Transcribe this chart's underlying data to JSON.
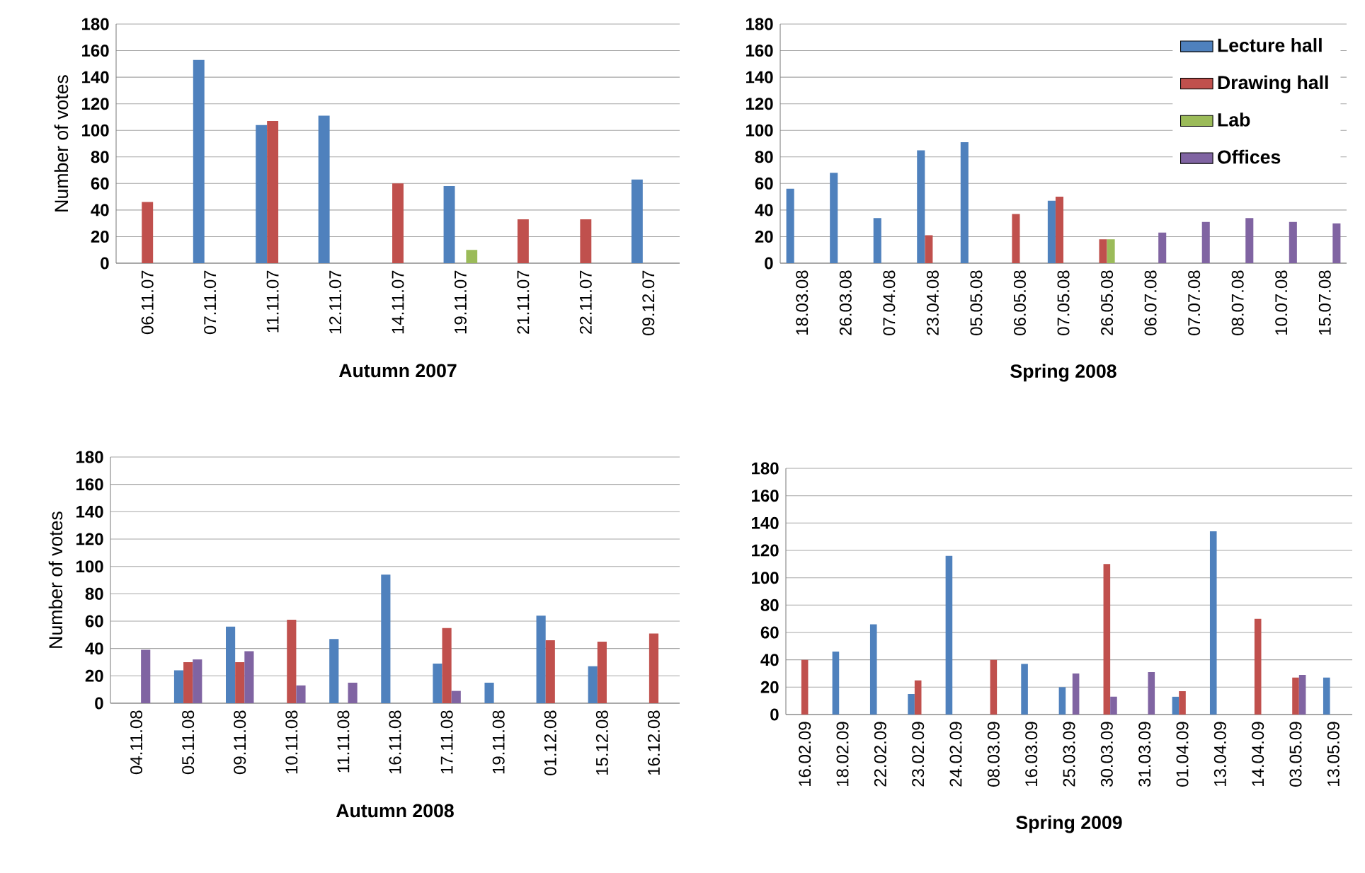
{
  "chart_data": [
    {
      "type": "bar",
      "xlabel": "Autumn 2007",
      "ylabel": "Number of votes",
      "categories": [
        "06.11.07",
        "07.11.07",
        "11.11.07",
        "12.11.07",
        "14.11.07",
        "19.11.07",
        "21.11.07",
        "22.11.07",
        "09.12.07"
      ],
      "series": [
        {
          "color": "#4f81bd",
          "values": [
            null,
            153,
            104,
            111,
            null,
            58,
            null,
            null,
            63
          ]
        },
        {
          "color": "#c0504d",
          "values": [
            46,
            null,
            107,
            null,
            60,
            null,
            33,
            33,
            null
          ]
        },
        {
          "color": "#9bbb59",
          "values": [
            null,
            null,
            null,
            null,
            null,
            10,
            null,
            null,
            null
          ]
        }
      ],
      "ylim": [
        0,
        180
      ],
      "yticks": [
        0,
        20,
        40,
        60,
        80,
        100,
        120,
        140,
        160,
        180
      ],
      "grid": "y",
      "legend": false
    },
    {
      "type": "bar",
      "xlabel": "Spring 2008",
      "categories": [
        "18.03.08",
        "26.03.08",
        "07.04.08",
        "23.04.08",
        "05.05.08",
        "06.05.08",
        "07.05.08",
        "26.05.08",
        "06.07.08",
        "07.07.08",
        "08.07.08",
        "10.07.08",
        "15.07.08"
      ],
      "series": [
        {
          "name": "Lecture hall",
          "color": "#4f81bd",
          "values": [
            56,
            68,
            34,
            85,
            91,
            null,
            47,
            null,
            null,
            null,
            null,
            null,
            null
          ]
        },
        {
          "name": "Drawing hall",
          "color": "#c0504d",
          "values": [
            null,
            null,
            null,
            21,
            null,
            37,
            50,
            18,
            null,
            null,
            null,
            null,
            null
          ]
        },
        {
          "name": "Lab",
          "color": "#9bbb59",
          "values": [
            null,
            null,
            null,
            null,
            null,
            null,
            null,
            18,
            null,
            null,
            null,
            null,
            null
          ]
        },
        {
          "name": "Offices",
          "color": "#8064a2",
          "values": [
            null,
            null,
            null,
            null,
            null,
            null,
            null,
            null,
            23,
            31,
            34,
            31,
            30
          ]
        }
      ],
      "ylim": [
        0,
        180
      ],
      "yticks": [
        0,
        20,
        40,
        60,
        80,
        100,
        120,
        140,
        160,
        180
      ],
      "grid": "y",
      "legend": "top right"
    },
    {
      "type": "bar",
      "xlabel": "Autumn 2008",
      "ylabel": "Number of votes",
      "categories": [
        "04.11.08",
        "05.11.08",
        "09.11.08",
        "10.11.08",
        "11.11.08",
        "16.11.08",
        "17.11.08",
        "19.11.08",
        "01.12.08",
        "15.12.08",
        "16.12.08"
      ],
      "series": [
        {
          "color": "#4f81bd",
          "values": [
            null,
            24,
            56,
            null,
            47,
            94,
            29,
            15,
            64,
            27,
            null
          ]
        },
        {
          "color": "#c0504d",
          "values": [
            null,
            30,
            30,
            61,
            null,
            null,
            55,
            null,
            46,
            45,
            51
          ]
        },
        {
          "color": "#8064a2",
          "values": [
            39,
            32,
            38,
            13,
            15,
            null,
            9,
            null,
            null,
            null,
            null
          ]
        }
      ],
      "ylim": [
        0,
        180
      ],
      "yticks": [
        0,
        20,
        40,
        60,
        80,
        100,
        120,
        140,
        160,
        180
      ],
      "grid": "y",
      "legend": false
    },
    {
      "type": "bar",
      "xlabel": "Spring 2009",
      "categories": [
        "16.02.09",
        "18.02.09",
        "22.02.09",
        "23.02.09",
        "24.02.09",
        "08.03.09",
        "16.03.09",
        "25.03.09",
        "30.03.09",
        "31.03.09",
        "01.04.09",
        "13.04.09",
        "14.04.09",
        "03.05.09",
        "13.05.09"
      ],
      "series": [
        {
          "color": "#4f81bd",
          "values": [
            null,
            46,
            66,
            15,
            116,
            null,
            37,
            20,
            null,
            null,
            13,
            134,
            null,
            null,
            27
          ]
        },
        {
          "color": "#c0504d",
          "values": [
            40,
            null,
            null,
            25,
            null,
            40,
            null,
            null,
            110,
            null,
            17,
            null,
            70,
            27,
            null
          ]
        },
        {
          "color": "#8064a2",
          "values": [
            null,
            null,
            null,
            null,
            null,
            null,
            null,
            30,
            13,
            31,
            null,
            null,
            null,
            29,
            null
          ]
        }
      ],
      "ylim": [
        0,
        180
      ],
      "yticks": [
        0,
        20,
        40,
        60,
        80,
        100,
        120,
        140,
        160,
        180
      ],
      "grid": "y",
      "legend": false
    }
  ]
}
